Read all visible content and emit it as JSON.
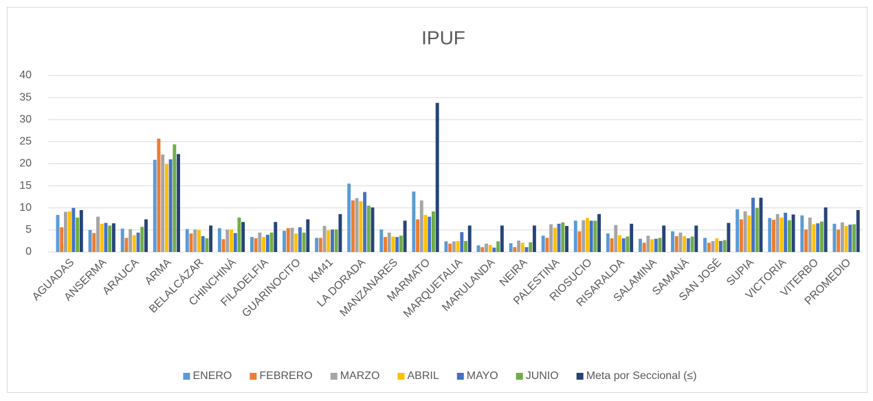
{
  "chart_data": {
    "type": "bar",
    "title": "IPUF",
    "categories": [
      "AGUADAS",
      "ANSERMA",
      "ARAUCA",
      "ARMA",
      "BELALCÁZAR",
      "CHINCHINÁ",
      "FILADELFIA",
      "GUARINOCITO",
      "KM41",
      "LA DORADA",
      "MANZANARES",
      "MARMATO",
      "MARQUETALIA",
      "MARULANDA",
      "NEIRA",
      "PALESTINA",
      "RIOSUCIO",
      "RISARALDA",
      "SALAMINA",
      "SAMANÁ",
      "SAN JOSÉ",
      "SUPIA",
      "VICTORIA",
      "VITERBO",
      "PROMEDIO"
    ],
    "series": [
      {
        "name": "ENERO",
        "color": "#5b9bd5",
        "values": [
          8.4,
          5,
          5.3,
          20.9,
          5.2,
          5.4,
          3.4,
          4.8,
          3.2,
          15.5,
          5.1,
          13.7,
          2.4,
          1.5,
          2.0,
          3.7,
          7.1,
          4.2,
          3.0,
          4.7,
          3.2,
          9.7,
          7.7,
          8.3,
          6.4
        ]
      },
      {
        "name": "FEBRERO",
        "color": "#ed7d31",
        "values": [
          5.6,
          4.3,
          3.2,
          25.7,
          4.2,
          2.9,
          3.1,
          5.4,
          3.2,
          11.7,
          3.4,
          7.4,
          1.9,
          1.1,
          1.1,
          3.2,
          4.7,
          3.1,
          2.1,
          3.6,
          2.1,
          7.4,
          7.3,
          5.1,
          5.1
        ]
      },
      {
        "name": "MARZO",
        "color": "#a5a5a5",
        "values": [
          9.1,
          8,
          5.2,
          22.1,
          5.1,
          5.1,
          4.4,
          5.5,
          5.9,
          12.2,
          4.4,
          11.7,
          2.4,
          1.9,
          2.6,
          6.3,
          7.2,
          6.1,
          3.7,
          4.4,
          2.5,
          9.2,
          8.6,
          7.8,
          6.7
        ]
      },
      {
        "name": "ABRIL",
        "color": "#ffc000",
        "values": [
          9.2,
          6.4,
          3.8,
          19.9,
          5,
          5.1,
          3.4,
          4.2,
          4.9,
          11.5,
          3.5,
          8.4,
          2.5,
          1.6,
          2.1,
          5.5,
          7.7,
          3.8,
          2.9,
          3.6,
          3.1,
          8.3,
          7.8,
          6.3,
          5.9
        ]
      },
      {
        "name": "MAYO",
        "color": "#4472c4",
        "values": [
          10,
          6.6,
          4.4,
          21,
          3.6,
          4.3,
          3.9,
          5.6,
          5.1,
          13.6,
          3.4,
          8,
          4.5,
          1.0,
          1.1,
          6.4,
          7.1,
          3.1,
          3,
          3.1,
          2.5,
          12.3,
          8.9,
          6.5,
          6.2
        ]
      },
      {
        "name": "JUNIO",
        "color": "#70ad47",
        "values": [
          7.8,
          6,
          5.7,
          24.4,
          3.1,
          7.8,
          4.4,
          4.4,
          5.1,
          10.5,
          3.7,
          9.2,
          2.5,
          2.4,
          2.2,
          6.7,
          7.1,
          3.5,
          3.2,
          3.5,
          2.7,
          10,
          7.2,
          6.9,
          6.3
        ]
      },
      {
        "name": "Meta por Seccional (≤)",
        "color": "#264478",
        "values": [
          9.5,
          6.5,
          7.4,
          22.2,
          6,
          6.8,
          6.8,
          7.4,
          8.6,
          10.1,
          7.1,
          33.8,
          6,
          6,
          6,
          5.9,
          8.6,
          6.4,
          6,
          6,
          6.6,
          12.3,
          8.5,
          10.1,
          9.5
        ]
      }
    ],
    "ylim": [
      0,
      40
    ],
    "yticks": [
      0,
      5,
      10,
      15,
      20,
      25,
      30,
      35,
      40
    ],
    "grid": true,
    "legend": "bottom"
  }
}
